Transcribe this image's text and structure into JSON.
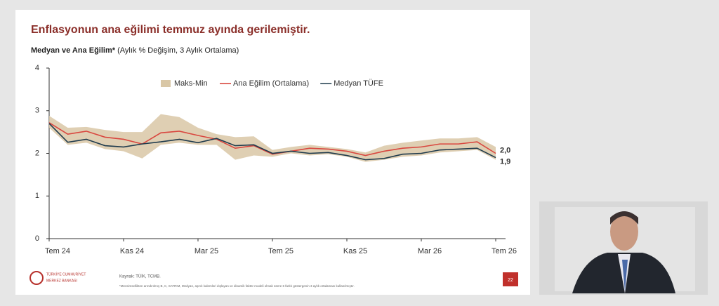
{
  "slide": {
    "title": "Enflasyonun ana eğilimi temmuz ayında gerilemiştir.",
    "source": "Kaynak: TÜİK, TCMB.",
    "footnote": "*Mevsimsellikten arındırılmış B, C, SATRIM, Medyan, aşırık kalemleri dışlayan ve dinamik faktör modeli olmak üzere 6 farklı göstergenin 3 aylık ortalaması kullanılmıştır.",
    "logo_line1": "TÜRKİYE CUMHURİYET",
    "logo_line2": "MERKEZ BANKASI",
    "page_number": "22"
  },
  "chart_data": {
    "type": "line",
    "subtitle_bold": "Medyan ve Ana Eğilim*",
    "subtitle": "(Aylık % Değişim, 3 Aylık Ortalama)",
    "categories": [
      "Tem 24",
      null,
      null,
      null,
      "Kas 24",
      null,
      null,
      null,
      "Mar 25",
      null,
      null,
      null,
      "Tem 25",
      null,
      null,
      null,
      "Kas 25",
      null,
      null,
      null,
      "Mar 26",
      null,
      null,
      null,
      "Tem 26"
    ],
    "ylim": [
      0,
      4
    ],
    "yticks": [
      0,
      1,
      2,
      3,
      4
    ],
    "legend": "top",
    "band": {
      "name": "Maks-Min",
      "color": "#d9c7a6",
      "high": [
        2.88,
        2.6,
        2.62,
        2.55,
        2.5,
        2.5,
        2.92,
        2.85,
        2.6,
        2.45,
        2.38,
        2.4,
        2.08,
        2.15,
        2.2,
        2.15,
        2.1,
        2.02,
        2.18,
        2.25,
        2.3,
        2.35,
        2.35,
        2.38,
        2.15
      ],
      "low": [
        2.6,
        2.2,
        2.25,
        2.1,
        2.05,
        1.88,
        2.2,
        2.25,
        2.2,
        2.2,
        1.85,
        1.95,
        1.92,
        2.0,
        1.95,
        1.98,
        1.92,
        1.8,
        1.85,
        1.92,
        1.95,
        2.02,
        2.05,
        2.08,
        1.85
      ]
    },
    "series": [
      {
        "name": "Ana Eğilim (Ortalama)",
        "color": "#d9473f",
        "values": [
          2.72,
          2.45,
          2.52,
          2.38,
          2.33,
          2.22,
          2.48,
          2.52,
          2.42,
          2.33,
          2.12,
          2.18,
          1.98,
          2.05,
          2.12,
          2.1,
          2.05,
          1.95,
          2.05,
          2.12,
          2.15,
          2.22,
          2.22,
          2.27,
          2.0
        ],
        "value_labels": [
          null,
          null,
          null,
          null,
          null,
          null,
          null,
          null,
          null,
          null,
          null,
          null,
          null,
          null,
          null,
          null,
          null,
          null,
          null,
          null,
          null,
          null,
          null,
          null,
          "2,0"
        ]
      },
      {
        "name": "Medyan TÜFE",
        "color": "#1f3b4d",
        "values": [
          2.7,
          2.26,
          2.33,
          2.18,
          2.15,
          2.22,
          2.27,
          2.33,
          2.25,
          2.35,
          2.18,
          2.2,
          2.0,
          2.05,
          2.0,
          2.02,
          1.95,
          1.85,
          1.88,
          1.98,
          2.0,
          2.08,
          2.1,
          2.12,
          1.9
        ],
        "value_labels": [
          null,
          null,
          null,
          null,
          null,
          null,
          null,
          null,
          null,
          null,
          null,
          null,
          null,
          null,
          null,
          null,
          null,
          null,
          null,
          null,
          null,
          null,
          null,
          null,
          "1,9"
        ]
      }
    ]
  }
}
